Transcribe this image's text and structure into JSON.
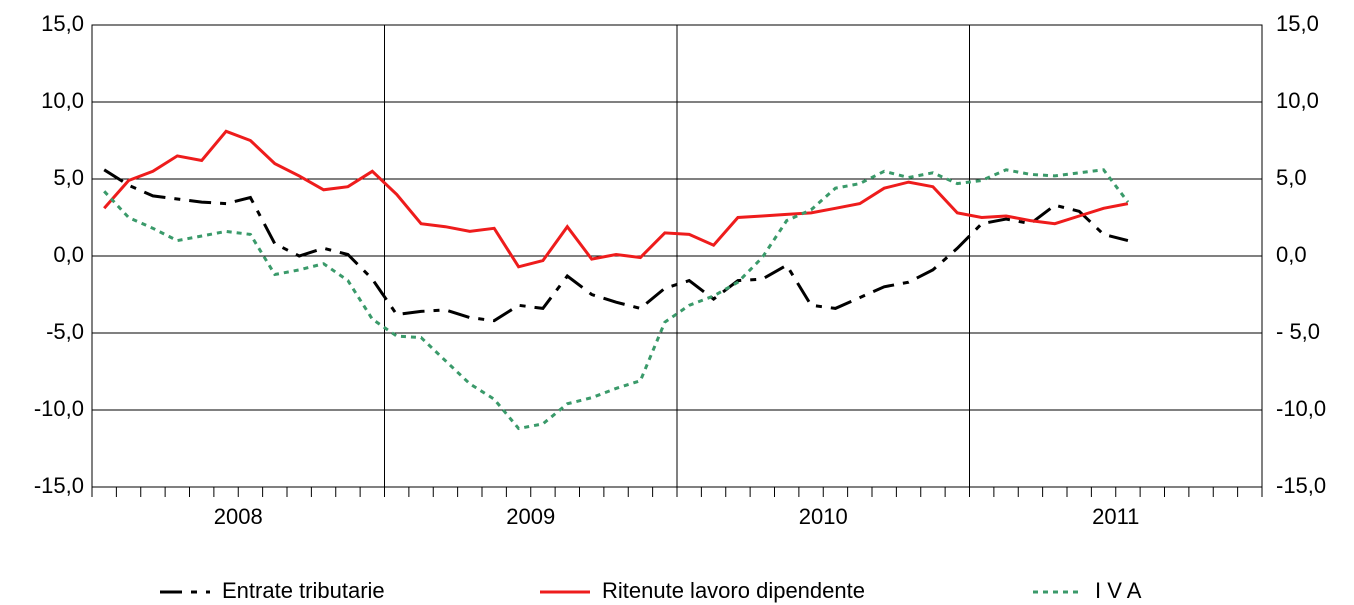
{
  "chart_data": {
    "type": "line",
    "categories": [
      null,
      null,
      null,
      null,
      null,
      null,
      null,
      null,
      null,
      null,
      null,
      null,
      null,
      null,
      null,
      null,
      null,
      null,
      null,
      null,
      null,
      null,
      null,
      null,
      null,
      null,
      null,
      null,
      null,
      null,
      null,
      null,
      null,
      null,
      null,
      null,
      null,
      null,
      null,
      null,
      null,
      null,
      null,
      null,
      null,
      null,
      null,
      null
    ],
    "category_groups": [
      "2008",
      "2009",
      "2010",
      "2011"
    ],
    "series": [
      {
        "name": "Entrate tributarie",
        "color": "#000000",
        "dash": "dashdot",
        "values": [
          5.6,
          4.6,
          3.9,
          3.7,
          3.5,
          3.4,
          3.8,
          0.8,
          0.0,
          0.5,
          0.1,
          -1.5,
          -3.8,
          -3.6,
          -3.5,
          -4.0,
          -4.2,
          -3.2,
          -3.4,
          -1.3,
          -2.5,
          -3.0,
          -3.4,
          -2.1,
          -1.6,
          -2.8,
          -1.6,
          -1.5,
          -0.6,
          -3.2,
          -3.4,
          -2.7,
          -2.0,
          -1.7,
          -0.9,
          0.5,
          2.1,
          2.4,
          2.1,
          3.3,
          2.9,
          1.4,
          1.0,
          null,
          null,
          null,
          null,
          null
        ]
      },
      {
        "name": "Ritenute lavoro dipendente",
        "color": "#ee1c1c",
        "dash": "solid",
        "values": [
          3.1,
          4.9,
          5.5,
          6.5,
          6.2,
          8.1,
          7.5,
          6.0,
          5.2,
          4.3,
          4.5,
          5.5,
          4.0,
          2.1,
          1.9,
          1.6,
          1.8,
          -0.7,
          -0.3,
          1.9,
          -0.2,
          0.1,
          -0.1,
          1.5,
          1.4,
          0.7,
          2.5,
          2.6,
          2.7,
          2.8,
          3.1,
          3.4,
          4.4,
          4.8,
          4.5,
          2.8,
          2.5,
          2.6,
          2.3,
          2.1,
          2.6,
          3.1,
          3.4,
          null,
          null,
          null,
          null,
          null
        ]
      },
      {
        "name": "I V A",
        "color": "#3a9a6a",
        "dash": "dotted",
        "values": [
          4.2,
          2.5,
          1.8,
          1.0,
          1.3,
          1.6,
          1.4,
          -1.2,
          -0.9,
          -0.5,
          -1.6,
          -4.1,
          -5.2,
          -5.3,
          -6.8,
          -8.3,
          -9.3,
          -11.2,
          -10.9,
          -9.6,
          -9.2,
          -8.6,
          -8.1,
          -4.3,
          -3.2,
          -2.6,
          -1.7,
          -0.1,
          2.3,
          3.0,
          4.4,
          4.7,
          5.5,
          5.1,
          5.4,
          4.7,
          4.9,
          5.6,
          5.3,
          5.2,
          5.4,
          5.6,
          3.5,
          null,
          null,
          null,
          null,
          null
        ]
      }
    ],
    "ylim": [
      -15,
      15
    ],
    "yticks": [
      {
        "value": -15,
        "label": "-15,0"
      },
      {
        "value": -10,
        "label": "-10,0"
      },
      {
        "value": -5,
        "label": "-5,0"
      },
      {
        "value": 0,
        "label": "0,0"
      },
      {
        "value": 5,
        "label": "5,0"
      },
      {
        "value": 10,
        "label": "10,0"
      },
      {
        "value": 15,
        "label": "15,0"
      }
    ],
    "y2lim": [
      -15,
      15
    ],
    "y2ticks": [
      {
        "value": -15,
        "label": "-15,0"
      },
      {
        "value": -10,
        "label": "-10,0"
      },
      {
        "value": -5,
        "label": "- 5,0"
      },
      {
        "value": 0,
        "label": "0,0"
      },
      {
        "value": 5,
        "label": "5,0"
      },
      {
        "value": 10,
        "label": "10,0"
      },
      {
        "value": 15,
        "label": "15,0"
      }
    ],
    "grid": true,
    "legend": "bottom"
  }
}
